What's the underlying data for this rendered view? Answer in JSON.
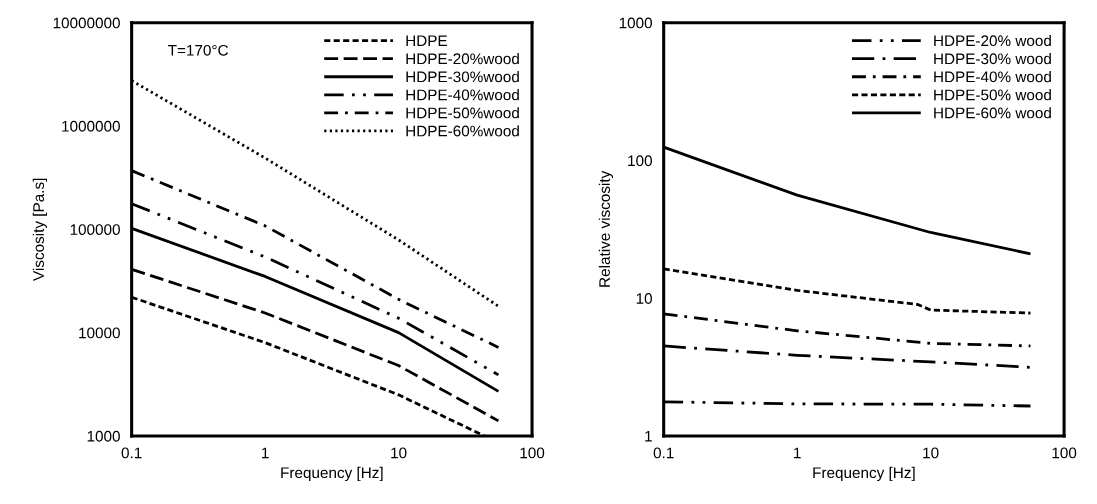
{
  "chart_data": [
    {
      "type": "line",
      "xlabel": "Frequency [Hz]",
      "ylabel": "Viscosity [Pa.s]",
      "log": "xy",
      "xlim": [
        0.1,
        100
      ],
      "xticks": [
        0.1,
        1,
        10,
        100
      ],
      "ylim": [
        1000,
        10000000
      ],
      "yticks": [
        1000,
        10000,
        100000,
        1000000,
        10000000
      ],
      "grid": false,
      "legend": "top right",
      "annotations": [
        "T=170°C"
      ],
      "x": [
        0.1,
        1,
        10,
        56
      ],
      "series": [
        {
          "name": "HDPE",
          "color": "#000000",
          "line_style": "dashed",
          "x": [
            0.1,
            1,
            10,
            44
          ],
          "values": [
            22000,
            8000,
            2500,
            1000
          ]
        },
        {
          "name": "HDPE-20%wood",
          "color": "#000000",
          "line_style": "long dashed",
          "values": [
            41000,
            15500,
            4800,
            1400
          ]
        },
        {
          "name": "HDPE-30%wood",
          "color": "#000000",
          "line_style": "solid",
          "values": [
            102000,
            35000,
            10000,
            2700
          ]
        },
        {
          "name": "HDPE-40%wood",
          "color": "#000000",
          "line_style": "dash dot dot",
          "values": [
            177000,
            54000,
            13800,
            3900
          ]
        },
        {
          "name": "HDPE-50%wood",
          "color": "#000000",
          "line_style": "dash dot",
          "values": [
            370000,
            108000,
            21000,
            7200
          ]
        },
        {
          "name": "HDPE-60%wood",
          "color": "#000000",
          "line_style": "dotted",
          "values": [
            2750000,
            490000,
            79000,
            18000
          ]
        }
      ]
    },
    {
      "type": "line",
      "xlabel": "Frequency [Hz]",
      "ylabel": "Relative viscosity",
      "log": "xy",
      "xlim": [
        0.1,
        100
      ],
      "xticks": [
        0.1,
        1,
        10,
        100
      ],
      "ylim": [
        1,
        1000
      ],
      "yticks": [
        1,
        10,
        100,
        1000
      ],
      "grid": false,
      "legend": "top right",
      "x": [
        0.1,
        1,
        10,
        56
      ],
      "series": [
        {
          "name": "HDPE-20% wood",
          "color": "#000000",
          "line_style": "dash dot dot",
          "values": [
            1.77,
            1.71,
            1.7,
            1.65
          ]
        },
        {
          "name": "HDPE-30% wood",
          "color": "#000000",
          "line_style": "long dash dot",
          "values": [
            4.5,
            3.85,
            3.45,
            3.15
          ]
        },
        {
          "name": "HDPE-40% wood",
          "color": "#000000",
          "line_style": "dash dot",
          "values": [
            7.7,
            5.8,
            4.7,
            4.5
          ]
        },
        {
          "name": "HDPE-50% wood",
          "color": "#000000",
          "line_style": "dashed",
          "x": [
            0.1,
            1,
            8,
            10,
            56
          ],
          "values": [
            16.3,
            11.4,
            9.0,
            8.2,
            7.8
          ]
        },
        {
          "name": "HDPE-60% wood",
          "color": "#000000",
          "line_style": "solid",
          "values": [
            125,
            56,
            30,
            21
          ]
        }
      ]
    }
  ]
}
